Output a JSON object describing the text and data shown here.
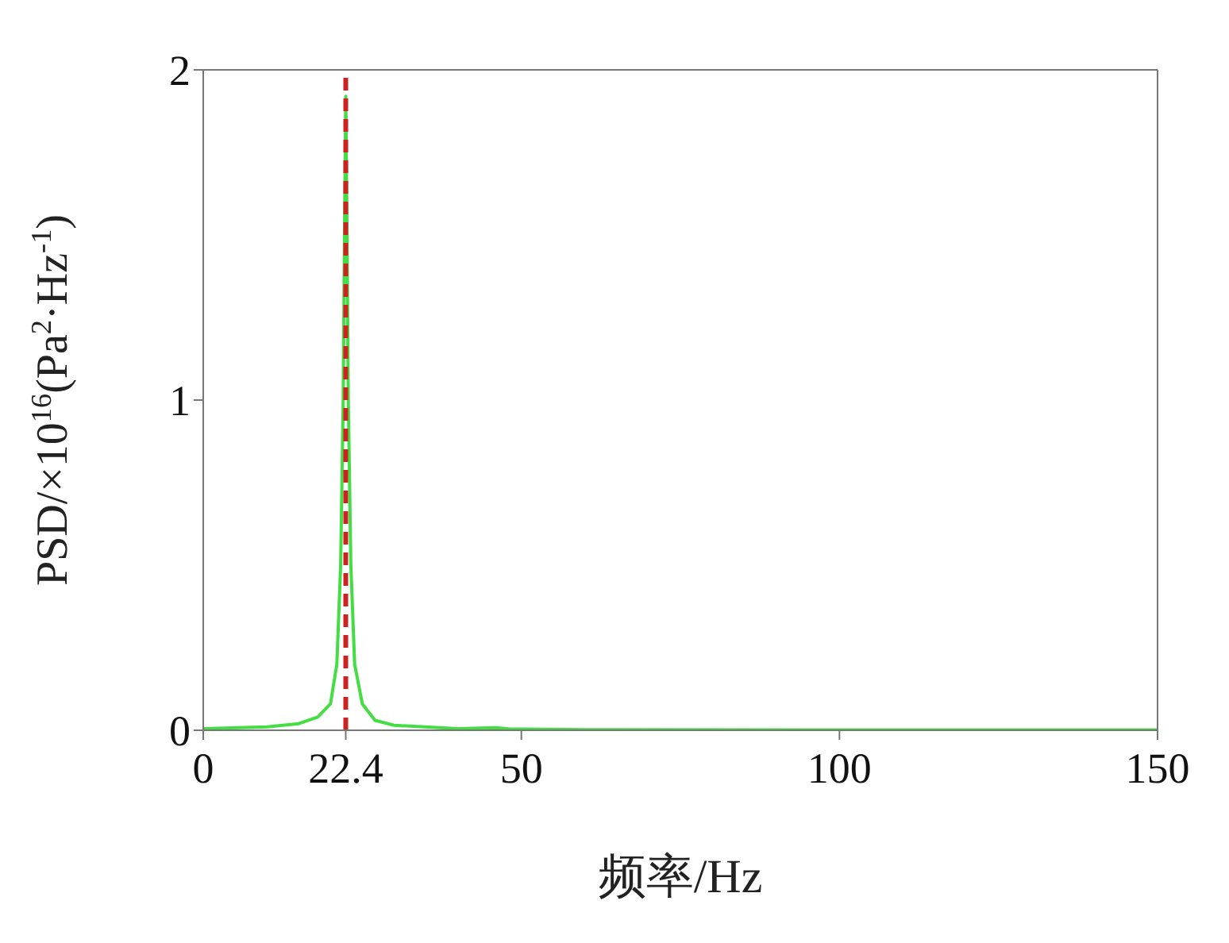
{
  "chart_data": {
    "type": "line",
    "xlabel": "频率/Hz",
    "ylabel": "PSD/×10$^{16}$(Pa$^{2}$·Hz$^{-1}$)",
    "x": [
      0,
      10,
      15,
      18,
      20,
      21,
      21.6,
      22,
      22.2,
      22.4,
      22.6,
      22.8,
      23.2,
      23.8,
      25,
      27,
      30,
      40,
      46,
      48,
      60,
      100,
      150
    ],
    "series": [
      {
        "color": "#44dd44",
        "values": [
          0.005,
          0.01,
          0.02,
          0.04,
          0.08,
          0.2,
          0.5,
          1.0,
          1.5,
          1.92,
          1.5,
          1.0,
          0.5,
          0.2,
          0.08,
          0.03,
          0.015,
          0.005,
          0.008,
          0.004,
          0.002,
          0.001,
          0.001
        ]
      }
    ],
    "xlim": [
      0,
      150
    ],
    "xticks": [
      0,
      22.4,
      50,
      100,
      150
    ],
    "ylim": [
      0,
      2
    ],
    "yticks": [
      0,
      1,
      2
    ],
    "ref_lines": [
      {
        "axis": "x",
        "value": 22.4,
        "color": "#cc2222",
        "line_style": "dashed"
      }
    ],
    "grid": false,
    "marker": "none",
    "line_style": "solid"
  }
}
